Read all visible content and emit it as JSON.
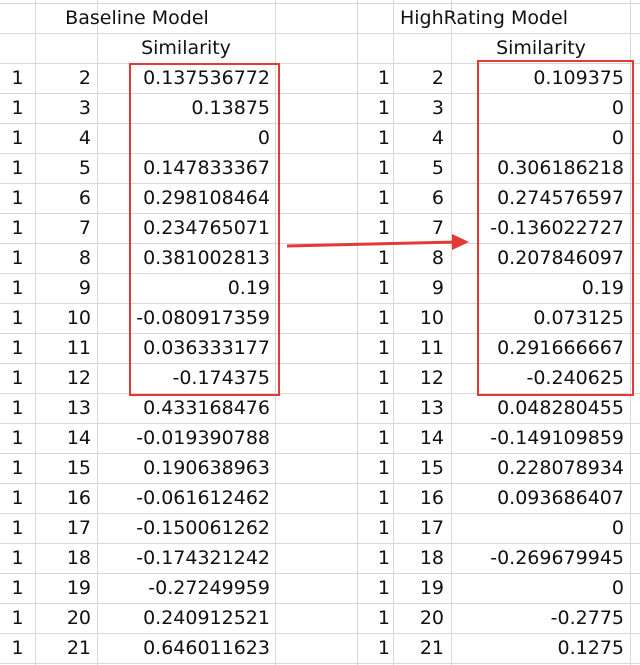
{
  "left": {
    "title": "Baseline Model",
    "column_header": "Similarity",
    "rows": [
      {
        "a": "1",
        "b": "2",
        "sim": "0.137536772"
      },
      {
        "a": "1",
        "b": "3",
        "sim": "0.13875"
      },
      {
        "a": "1",
        "b": "4",
        "sim": "0"
      },
      {
        "a": "1",
        "b": "5",
        "sim": "0.147833367"
      },
      {
        "a": "1",
        "b": "6",
        "sim": "0.298108464"
      },
      {
        "a": "1",
        "b": "7",
        "sim": "0.234765071"
      },
      {
        "a": "1",
        "b": "8",
        "sim": "0.381002813"
      },
      {
        "a": "1",
        "b": "9",
        "sim": "0.19"
      },
      {
        "a": "1",
        "b": "10",
        "sim": "-0.080917359"
      },
      {
        "a": "1",
        "b": "11",
        "sim": "0.036333177"
      },
      {
        "a": "1",
        "b": "12",
        "sim": "-0.174375"
      },
      {
        "a": "1",
        "b": "13",
        "sim": "0.433168476"
      },
      {
        "a": "1",
        "b": "14",
        "sim": "-0.019390788"
      },
      {
        "a": "1",
        "b": "15",
        "sim": "0.190638963"
      },
      {
        "a": "1",
        "b": "16",
        "sim": "-0.061612462"
      },
      {
        "a": "1",
        "b": "17",
        "sim": "-0.150061262"
      },
      {
        "a": "1",
        "b": "18",
        "sim": "-0.174321242"
      },
      {
        "a": "1",
        "b": "19",
        "sim": "-0.27249959"
      },
      {
        "a": "1",
        "b": "20",
        "sim": "0.240912521"
      },
      {
        "a": "1",
        "b": "21",
        "sim": "0.646011623"
      }
    ]
  },
  "right": {
    "title": "HighRating Model",
    "column_header": "Similarity",
    "rows": [
      {
        "a": "1",
        "b": "2",
        "sim": "0.109375"
      },
      {
        "a": "1",
        "b": "3",
        "sim": "0"
      },
      {
        "a": "1",
        "b": "4",
        "sim": "0"
      },
      {
        "a": "1",
        "b": "5",
        "sim": "0.306186218"
      },
      {
        "a": "1",
        "b": "6",
        "sim": "0.274576597"
      },
      {
        "a": "1",
        "b": "7",
        "sim": "-0.136022727"
      },
      {
        "a": "1",
        "b": "8",
        "sim": "0.207846097"
      },
      {
        "a": "1",
        "b": "9",
        "sim": "0.19"
      },
      {
        "a": "1",
        "b": "10",
        "sim": "0.073125"
      },
      {
        "a": "1",
        "b": "11",
        "sim": "0.291666667"
      },
      {
        "a": "1",
        "b": "12",
        "sim": "-0.240625"
      },
      {
        "a": "1",
        "b": "13",
        "sim": "0.048280455"
      },
      {
        "a": "1",
        "b": "14",
        "sim": "-0.149109859"
      },
      {
        "a": "1",
        "b": "15",
        "sim": "0.228078934"
      },
      {
        "a": "1",
        "b": "16",
        "sim": "0.093686407"
      },
      {
        "a": "1",
        "b": "17",
        "sim": "0"
      },
      {
        "a": "1",
        "b": "18",
        "sim": "-0.269679945"
      },
      {
        "a": "1",
        "b": "19",
        "sim": "0"
      },
      {
        "a": "1",
        "b": "20",
        "sim": "-0.2775"
      },
      {
        "a": "1",
        "b": "21",
        "sim": "0.1275"
      }
    ]
  },
  "colors": {
    "highlight": "#e53935",
    "gridline": "#d7d7d7",
    "text": "#111111"
  }
}
